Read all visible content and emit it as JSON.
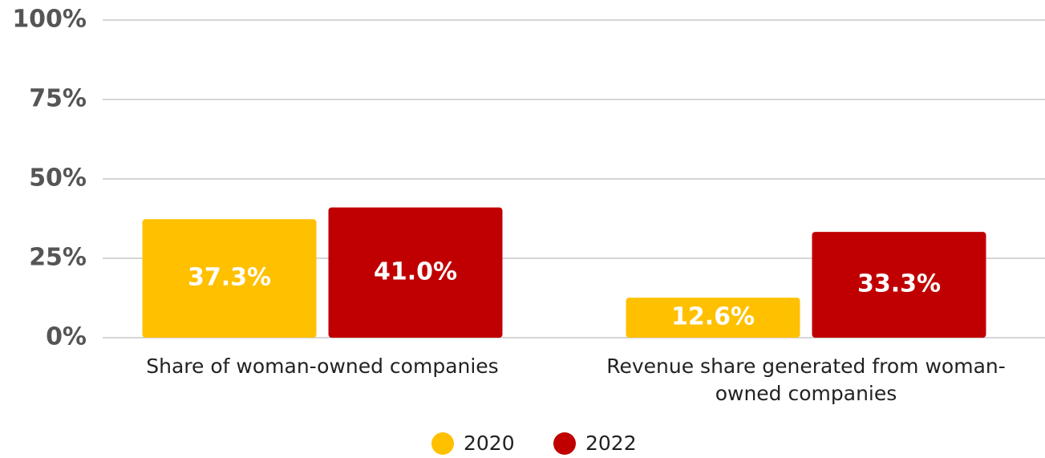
{
  "chart_data": {
    "type": "bar",
    "categories": [
      "Share of woman-owned companies",
      "Revenue share generated from woman-owned companies"
    ],
    "series": [
      {
        "name": "2020",
        "color": "#FFC000",
        "values": [
          37.3,
          12.6
        ],
        "value_labels": [
          "37.3%",
          "12.6%"
        ]
      },
      {
        "name": "2022",
        "color": "#C00000",
        "values": [
          41.0,
          33.3
        ],
        "value_labels": [
          "41.0%",
          "33.3%"
        ]
      }
    ],
    "ylim": [
      0,
      100
    ],
    "yticks": [
      {
        "value": 0,
        "label": "0%"
      },
      {
        "value": 25,
        "label": "25%"
      },
      {
        "value": 50,
        "label": "50%"
      },
      {
        "value": 75,
        "label": "75%"
      },
      {
        "value": 100,
        "label": "100%"
      }
    ],
    "grid": true,
    "legend": "bottom"
  }
}
